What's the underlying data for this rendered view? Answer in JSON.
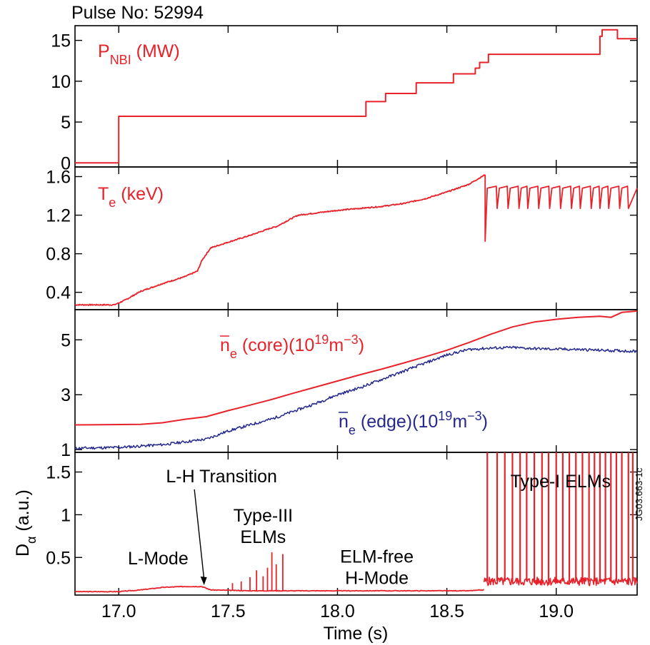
{
  "figure": {
    "pulse_label": "Pulse No: 52994",
    "ref_id": "JG03.663-1c",
    "colors": {
      "red": "#e8222a",
      "blue": "#24288f",
      "axis": "#000000"
    }
  },
  "chart_data": [
    {
      "type": "line",
      "panel": "nbi",
      "label_main": "P",
      "label_sub": "NBI",
      "label_tail": " (MW)",
      "xlim": [
        16.8,
        19.37
      ],
      "ylim": [
        -0.5,
        16.8
      ],
      "yticks": [
        0,
        5,
        10,
        15
      ],
      "xticks": [
        17.0,
        17.5,
        18.0,
        18.5,
        19.0
      ],
      "series": [
        {
          "color": "#e8222a",
          "x": [
            16.8,
            17.0,
            17.0,
            18.13,
            18.13,
            18.22,
            18.22,
            18.36,
            18.36,
            18.53,
            18.53,
            18.63,
            18.63,
            18.65,
            18.65,
            18.69,
            18.69,
            19.2,
            19.2,
            19.21,
            19.21,
            19.28,
            19.28,
            19.37
          ],
          "y": [
            0,
            0,
            5.7,
            5.7,
            7.5,
            7.5,
            8.5,
            8.5,
            9.8,
            9.8,
            10.9,
            10.9,
            11.6,
            11.6,
            12.3,
            12.3,
            13.3,
            13.3,
            15.5,
            15.5,
            16.3,
            16.3,
            15.2,
            15.2
          ]
        }
      ]
    },
    {
      "type": "line",
      "panel": "te",
      "label_main": "T",
      "label_sub": "e",
      "label_tail": " (keV)",
      "xlim": [
        16.8,
        19.37
      ],
      "ylim": [
        0.22,
        1.7
      ],
      "yticks": [
        0.4,
        0.8,
        1.2,
        1.6
      ],
      "xticks": [
        17.0,
        17.5,
        18.0,
        18.5,
        19.0
      ],
      "series": [
        {
          "color": "#e8222a",
          "x": [
            16.8,
            16.98,
            17.03,
            17.1,
            17.2,
            17.3,
            17.36,
            17.38,
            17.42,
            17.5,
            17.6,
            17.7,
            17.72,
            17.76,
            17.82,
            18.0,
            18.1,
            18.2,
            18.3,
            18.4,
            18.5,
            18.6,
            18.675
          ],
          "y": [
            0.27,
            0.27,
            0.32,
            0.41,
            0.49,
            0.56,
            0.62,
            0.73,
            0.86,
            0.92,
            0.99,
            1.07,
            1.08,
            1.13,
            1.2,
            1.25,
            1.27,
            1.29,
            1.32,
            1.37,
            1.44,
            1.52,
            1.62
          ]
        }
      ],
      "elm_sawtooth": {
        "crash_value": 0.93,
        "x_start": 18.675,
        "x_end": 19.37,
        "crash_times": [
          18.73,
          18.78,
          18.83,
          18.87,
          18.92,
          18.97,
          19.02,
          19.07,
          19.11,
          19.16,
          19.2,
          19.24,
          19.29,
          19.33
        ],
        "low": 1.27,
        "high": 1.48
      }
    },
    {
      "type": "line",
      "panel": "density",
      "xlim": [
        16.8,
        19.37
      ],
      "ylim": [
        0.9,
        6.1
      ],
      "yticks": [
        1,
        3,
        5
      ],
      "xticks": [
        17.0,
        17.5,
        18.0,
        18.5,
        19.0
      ],
      "series": [
        {
          "name": "n_e (core)",
          "label_main": "n",
          "label_sub": "e",
          "label_tail": " (core)(10",
          "label_sup": "19",
          "label_unit": "m",
          "label_sup2": "−3",
          "label_close": ")",
          "color": "#e8222a",
          "x": [
            16.8,
            17.1,
            17.2,
            17.3,
            17.4,
            17.5,
            17.6,
            17.7,
            17.8,
            17.9,
            18.0,
            18.1,
            18.2,
            18.3,
            18.4,
            18.5,
            18.6,
            18.7,
            18.8,
            18.9,
            19.0,
            19.1,
            19.2,
            19.25,
            19.3,
            19.37
          ],
          "y": [
            1.9,
            1.92,
            1.98,
            2.1,
            2.2,
            2.42,
            2.62,
            2.83,
            3.06,
            3.28,
            3.5,
            3.72,
            3.93,
            4.15,
            4.38,
            4.62,
            4.9,
            5.2,
            5.47,
            5.65,
            5.75,
            5.82,
            5.86,
            5.82,
            6.0,
            6.05
          ]
        },
        {
          "name": "n_e (edge)",
          "label_main": "n",
          "label_sub": "e",
          "label_tail": " (edge)(10",
          "label_sup": "19",
          "label_unit": "m",
          "label_sup2": "−3",
          "label_close": ")",
          "color": "#24288f",
          "x": [
            16.8,
            17.0,
            17.2,
            17.4,
            17.5,
            17.6,
            17.7,
            17.8,
            17.9,
            18.0,
            18.1,
            18.2,
            18.3,
            18.4,
            18.5,
            18.6,
            18.7,
            18.8,
            18.9,
            19.0,
            19.1,
            19.2,
            19.3,
            19.37
          ],
          "y": [
            1.05,
            1.08,
            1.18,
            1.38,
            1.68,
            1.9,
            2.12,
            2.4,
            2.68,
            3.0,
            3.25,
            3.55,
            3.85,
            4.15,
            4.45,
            4.65,
            4.7,
            4.72,
            4.68,
            4.66,
            4.65,
            4.62,
            4.6,
            4.58
          ]
        }
      ]
    },
    {
      "type": "line",
      "panel": "dalpha",
      "ylabel_main": "D",
      "ylabel_sub": "α",
      "ylabel_tail": " (a.u.)",
      "xlabel": "Time (s)",
      "xlim": [
        16.8,
        19.37
      ],
      "ylim": [
        0.06,
        1.73
      ],
      "yticks": [
        0.5,
        1.0,
        1.5
      ],
      "xticks": [
        17.0,
        17.5,
        18.0,
        18.5,
        19.0
      ],
      "xtick_labels": [
        "17.0",
        "17.5",
        "18.0",
        "18.5",
        "19.0"
      ],
      "series": [
        {
          "color": "#e8222a",
          "x": [
            16.8,
            17.0,
            17.1,
            17.2,
            17.3,
            17.38,
            17.42,
            17.6,
            17.8,
            18.0,
            18.2,
            18.4,
            18.5,
            18.6,
            18.67
          ],
          "y": [
            0.1,
            0.1,
            0.12,
            0.15,
            0.16,
            0.16,
            0.12,
            0.11,
            0.11,
            0.11,
            0.11,
            0.11,
            0.11,
            0.11,
            0.12
          ]
        }
      ],
      "type_iii_spikes": {
        "x": [
          17.52,
          17.56,
          17.6,
          17.63,
          17.66,
          17.68,
          17.7,
          17.72,
          17.75
        ],
        "y": [
          0.2,
          0.22,
          0.27,
          0.35,
          0.28,
          0.38,
          0.56,
          0.42,
          0.54
        ]
      },
      "type_i_elms": {
        "x_start": 18.67,
        "x_end": 19.37,
        "baseline": 0.22,
        "spike_times": [
          18.685,
          18.73,
          18.765,
          18.8,
          18.835,
          18.865,
          18.9,
          18.935,
          18.965,
          19.0,
          19.03,
          19.06,
          19.09,
          19.12,
          19.15,
          19.175,
          19.2,
          19.225,
          19.25,
          19.275,
          19.3,
          19.33,
          19.35
        ],
        "spike_value": 1.73
      },
      "annotations": [
        {
          "id": "l-mode",
          "lines": [
            "L-Mode"
          ],
          "x": 17.18,
          "y": 0.42
        },
        {
          "id": "lh-transition",
          "lines": [
            "L-H Transition"
          ],
          "x": 17.47,
          "y": 1.38,
          "arrow_to": [
            17.39,
            0.16
          ]
        },
        {
          "id": "type-iii-elms",
          "lines": [
            "Type-III",
            "ELMs"
          ],
          "x": 17.66,
          "y": 0.92
        },
        {
          "id": "elm-free",
          "lines": [
            "ELM-free",
            "H-Mode"
          ],
          "x": 18.18,
          "y": 0.44
        },
        {
          "id": "type-i-elms",
          "lines": [
            "Type-I ELMs"
          ],
          "x": 19.02,
          "y": 1.32
        }
      ]
    }
  ]
}
